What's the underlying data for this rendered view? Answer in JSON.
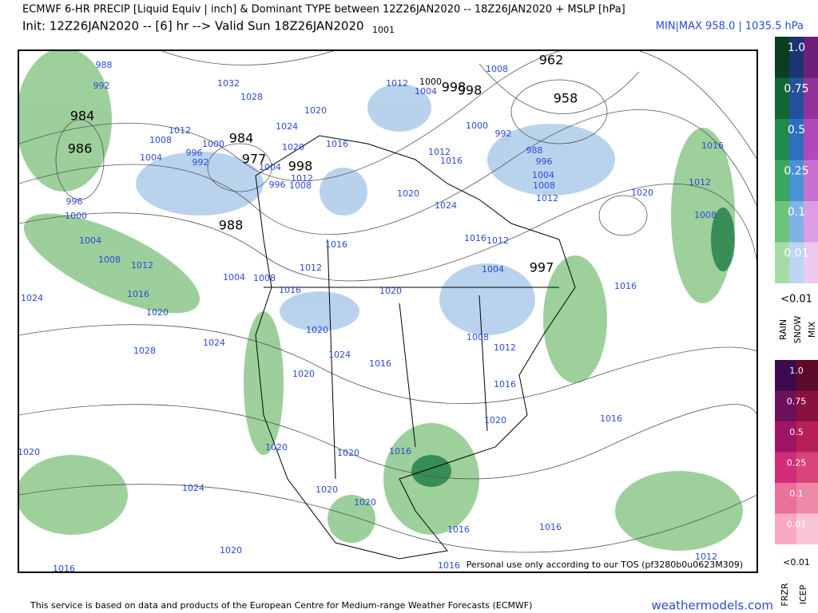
{
  "header": {
    "title": "ECMWF 6-HR PRECIP [Liquid Equiv | inch] & Dominant TYPE between 12Z26JAN2020 -- 18Z26JAN2020 + MSLP [hPa]",
    "init": "Init: 12Z26JAN2020 -- [6] hr --> Valid Sun 18Z26JAN2020",
    "minmax": "MIN|MAX 958.0 | 1035.5 hPa"
  },
  "legend_top": {
    "levels": [
      "1.0",
      "0.75",
      "0.5",
      "0.25",
      "0.1",
      "0.01"
    ],
    "below": "<0.01",
    "types": [
      "RAIN",
      "SNOW",
      "MIX"
    ]
  },
  "legend_bottom": {
    "levels": [
      "1.0",
      "0.75",
      "0.5",
      "0.25",
      "0.1",
      "0.01"
    ],
    "below": "<0.01",
    "types": [
      "FRZR",
      "ICEP"
    ]
  },
  "map": {
    "centers": [
      "962",
      "958",
      "984",
      "986",
      "984",
      "977",
      "998",
      "988",
      "997",
      "998",
      "998",
      "1000",
      "1001"
    ],
    "isobars": [
      "988",
      "992",
      "1032",
      "1028",
      "1020",
      "1024",
      "1012",
      "1008",
      "1000",
      "996",
      "992",
      "1004",
      "1020",
      "1016",
      "1004",
      "1012",
      "1008",
      "996",
      "996",
      "1000",
      "1004",
      "1008",
      "1012",
      "1016",
      "1020",
      "1024",
      "1028",
      "1024",
      "1004",
      "1008",
      "1016",
      "1012",
      "1016",
      "1020",
      "1024",
      "1020",
      "1016",
      "1012",
      "1004",
      "1016",
      "1020",
      "1012",
      "1008",
      "1004",
      "996",
      "988",
      "992",
      "1000",
      "1012",
      "1016",
      "1004",
      "1012",
      "1008",
      "1016",
      "1012",
      "1008",
      "1020",
      "1024",
      "1016",
      "1008",
      "1012",
      "1016",
      "1020",
      "1020",
      "1016",
      "1020",
      "1020",
      "1016",
      "1024",
      "1020",
      "1020",
      "1020",
      "1016",
      "1016",
      "1020",
      "1016",
      "1016",
      "1012"
    ],
    "tos": "Personal use only according to our TOS (pf3280b0u0623M309)"
  },
  "footer": {
    "disclaimer": "This service is based on data and products of the European Centre for Medium-range Weather Forecasts (ECMWF)",
    "brand": "weathermodels.com"
  }
}
